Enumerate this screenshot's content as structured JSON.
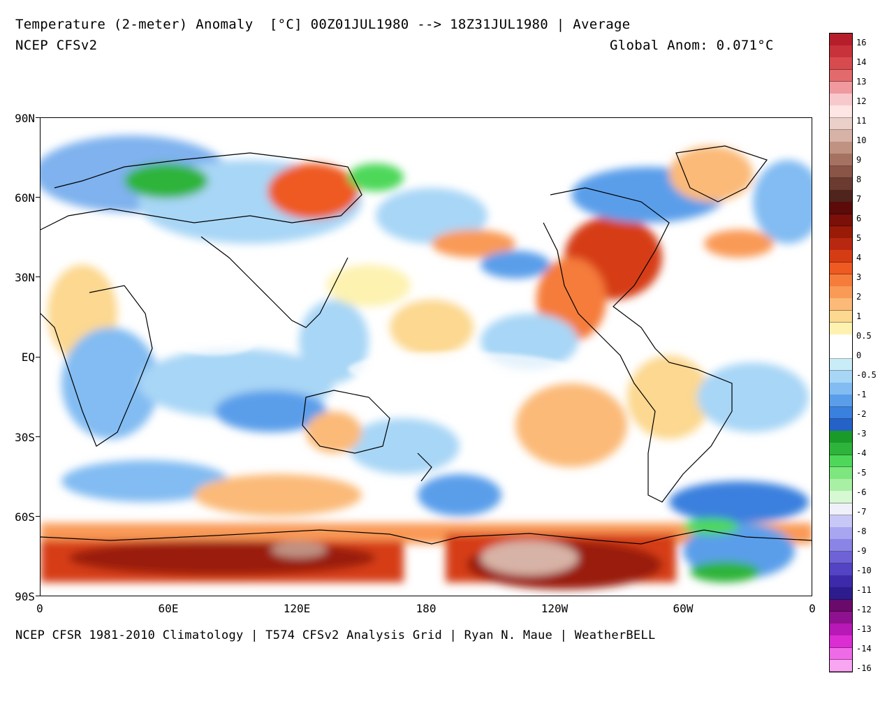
{
  "header": {
    "title": "Temperature (2-meter) Anomaly  [°C] 00Z01JUL1980 --> 18Z31JUL1980 | Average",
    "model": "NCEP CFSv2",
    "global_anom": "Global Anom: 0.071°C"
  },
  "footer": {
    "credits": "NCEP CFSR 1981-2010 Climatology | T574 CFSv2 Analysis Grid | Ryan N. Maue | WeatherBELL"
  },
  "axes": {
    "lat_labels": [
      "90N",
      "60N",
      "30N",
      "EQ",
      "30S",
      "60S",
      "90S"
    ],
    "lon_labels": [
      "0",
      "60E",
      "120E",
      "180",
      "120W",
      "60W",
      "0"
    ]
  },
  "colorbar": {
    "labels": [
      "16",
      "14",
      "13",
      "12",
      "11",
      "10",
      "9",
      "8",
      "7",
      "6",
      "5",
      "4",
      "3",
      "2",
      "1",
      "0.5",
      "0",
      "-0.5",
      "-1",
      "-2",
      "-3",
      "-4",
      "-5",
      "-6",
      "-7",
      "-8",
      "-9",
      "-10",
      "-11",
      "-12",
      "-13",
      "-14",
      "-16"
    ],
    "colors": [
      "#b51e2a",
      "#c8323a",
      "#d74a4e",
      "#e36a6c",
      "#f09aa0",
      "#f8c9cc",
      "#fde6e4",
      "#ead0c8",
      "#d7b2a6",
      "#bf9282",
      "#a57262",
      "#8a5446",
      "#6b3a30",
      "#4e241c",
      "#5c0a0a",
      "#7a1008",
      "#9a1a08",
      "#b82810",
      "#d63c14",
      "#ee5a22",
      "#f57c3a",
      "#f99a56",
      "#fbba78",
      "#fcd890",
      "#fdf2b0",
      "#ffffff",
      "#ffffff",
      "#c8ecf8",
      "#a8d6f6",
      "#82bcf2",
      "#5a9eea",
      "#3a80de",
      "#2462c8",
      "#1a9a28",
      "#2eb43a",
      "#4ed85a",
      "#7ee67e",
      "#a8f0a4",
      "#d6f8d2",
      "#f0f0fa",
      "#c8c8f6",
      "#a8a6f0",
      "#8a84e6",
      "#6e62d6",
      "#5444c4",
      "#3c2aaa",
      "#2c1c8e",
      "#6a0a6a",
      "#8e1290",
      "#b818b6",
      "#dc2cd4",
      "#ee6ae6",
      "#f8a6f2"
    ]
  }
}
